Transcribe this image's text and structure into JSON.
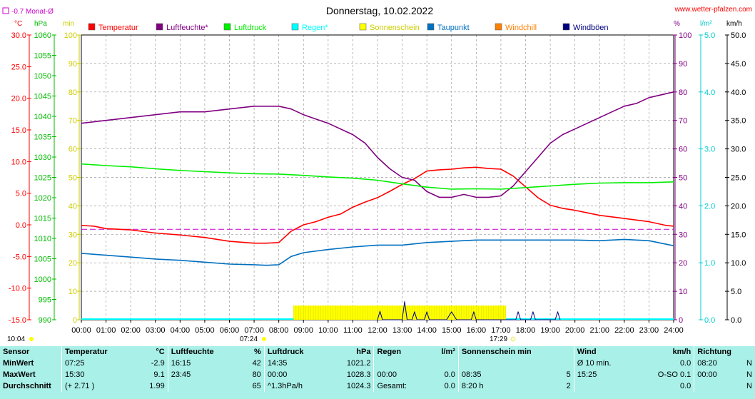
{
  "header": {
    "title": "Donnerstag, 10.02.2022",
    "site": "www.wetter-pfalzen.com",
    "monthly_avg": "-0.7 Monat-Ø",
    "monthly_avg_color": "#cc00cc"
  },
  "axes": {
    "temp_unit": "°C",
    "press_unit": "hPa",
    "min_unit": "min",
    "pct_unit": "%",
    "rain_unit": "l/m²",
    "wind_unit": "km/h",
    "temp_ticks": [
      "30.0",
      "25.0",
      "20.0",
      "15.0",
      "10.0",
      "5.0",
      "0.0",
      "-5.0",
      "-10.0",
      "-15.0"
    ],
    "press_ticks": [
      "1060",
      "1055",
      "1050",
      "1045",
      "1040",
      "1035",
      "1030",
      "1025",
      "1020",
      "1015",
      "1010",
      "1005",
      "1000",
      "995",
      "990"
    ],
    "min_ticks": [
      "100",
      "90",
      "80",
      "70",
      "60",
      "50",
      "40",
      "30",
      "20",
      "10",
      "0"
    ],
    "pct_ticks": [
      "100",
      "90",
      "80",
      "70",
      "60",
      "50",
      "40",
      "30",
      "20",
      "10",
      "0"
    ],
    "rain_ticks": [
      "5.0",
      "4.0",
      "3.0",
      "2.0",
      "1.0",
      "0.0"
    ],
    "wind_ticks": [
      "50.0",
      "45.0",
      "40.0",
      "35.0",
      "30.0",
      "25.0",
      "20.0",
      "15.0",
      "10.0",
      "5.0",
      "0.0"
    ],
    "time_ticks": [
      "00:00",
      "01:00",
      "02:00",
      "03:00",
      "04:00",
      "05:00",
      "06:00",
      "07:00",
      "08:00",
      "09:00",
      "10:00",
      "11:00",
      "12:00",
      "13:00",
      "14:00",
      "15:00",
      "16:00",
      "17:00",
      "18:00",
      "19:00",
      "20:00",
      "21:00",
      "22:00",
      "23:00",
      "24:00"
    ],
    "now_label": "10:04",
    "sunrise": "07:24",
    "sunset": "17:29"
  },
  "legend": [
    {
      "label": "Temperatur",
      "color": "#ff0000"
    },
    {
      "label": "Luftfeuchte*",
      "color": "#800080"
    },
    {
      "label": "Luftdruck",
      "color": "#00ee00"
    },
    {
      "label": "Regen*",
      "color": "#00ffff"
    },
    {
      "label": "Sonnenschein",
      "color": "#ffff00"
    },
    {
      "label": "Taupunkt",
      "color": "#0070c0"
    },
    {
      "label": "Windchill",
      "color": "#ff8000"
    },
    {
      "label": "Windböen",
      "color": "#000080"
    }
  ],
  "chart_data": {
    "type": "line",
    "title": "Donnerstag, 10.02.2022",
    "x_unit": "hour",
    "xlim": [
      0,
      24
    ],
    "grid": true,
    "legend_position": "top",
    "series": [
      {
        "name": "Temperatur",
        "unit": "°C",
        "ylim": [
          -15,
          30
        ],
        "color": "#ff0000",
        "points": [
          [
            0,
            -0.1
          ],
          [
            0.5,
            -0.2
          ],
          [
            1,
            -0.6
          ],
          [
            2,
            -0.8
          ],
          [
            3,
            -1.3
          ],
          [
            4,
            -1.6
          ],
          [
            5,
            -2.0
          ],
          [
            6,
            -2.6
          ],
          [
            7,
            -2.9
          ],
          [
            7.5,
            -2.9
          ],
          [
            8,
            -2.8
          ],
          [
            8.5,
            -1.0
          ],
          [
            9,
            0.0
          ],
          [
            9.5,
            0.5
          ],
          [
            10,
            1.2
          ],
          [
            10.5,
            1.7
          ],
          [
            11,
            2.8
          ],
          [
            11.5,
            3.6
          ],
          [
            12,
            4.3
          ],
          [
            12.5,
            5.3
          ],
          [
            13,
            6.4
          ],
          [
            13.5,
            7.3
          ],
          [
            14,
            8.5
          ],
          [
            14.5,
            8.7
          ],
          [
            15,
            8.8
          ],
          [
            15.5,
            9.0
          ],
          [
            16,
            9.1
          ],
          [
            16.5,
            8.9
          ],
          [
            17,
            8.8
          ],
          [
            17.5,
            7.7
          ],
          [
            18,
            6.0
          ],
          [
            18.5,
            4.3
          ],
          [
            19,
            3.1
          ],
          [
            19.5,
            2.6
          ],
          [
            20,
            2.3
          ],
          [
            20.5,
            1.9
          ],
          [
            21,
            1.5
          ],
          [
            22,
            1.0
          ],
          [
            23,
            0.5
          ],
          [
            23.7,
            -0.1
          ],
          [
            24,
            -0.2
          ]
        ]
      },
      {
        "name": "Luftfeuchte*",
        "unit": "%",
        "ylim": [
          0,
          100
        ],
        "color": "#800080",
        "points": [
          [
            0,
            69
          ],
          [
            1,
            70
          ],
          [
            2,
            71
          ],
          [
            3,
            72
          ],
          [
            4,
            73
          ],
          [
            5,
            73
          ],
          [
            6,
            74
          ],
          [
            7,
            75
          ],
          [
            8,
            75
          ],
          [
            8.5,
            74
          ],
          [
            9,
            72
          ],
          [
            10,
            69
          ],
          [
            11,
            65
          ],
          [
            11.5,
            62
          ],
          [
            12,
            57
          ],
          [
            12.5,
            53
          ],
          [
            13,
            50
          ],
          [
            13.5,
            49
          ],
          [
            14,
            45
          ],
          [
            14.5,
            43
          ],
          [
            15,
            43
          ],
          [
            15.5,
            44
          ],
          [
            16,
            43
          ],
          [
            16.5,
            43
          ],
          [
            17,
            43.5
          ],
          [
            17.5,
            47
          ],
          [
            18,
            52
          ],
          [
            18.5,
            57
          ],
          [
            19,
            62
          ],
          [
            19.5,
            65
          ],
          [
            20,
            67
          ],
          [
            20.5,
            69
          ],
          [
            21,
            71
          ],
          [
            21.5,
            73
          ],
          [
            22,
            75
          ],
          [
            22.5,
            76
          ],
          [
            23,
            78
          ],
          [
            24,
            80
          ]
        ]
      },
      {
        "name": "Luftdruck",
        "unit": "hPa",
        "ylim": [
          990,
          1060
        ],
        "color": "#00ee00",
        "points": [
          [
            0,
            1028.3
          ],
          [
            1,
            1027.9
          ],
          [
            2,
            1027.6
          ],
          [
            3,
            1027.1
          ],
          [
            4,
            1026.7
          ],
          [
            5,
            1026.4
          ],
          [
            6,
            1026.1
          ],
          [
            7,
            1025.9
          ],
          [
            8,
            1025.8
          ],
          [
            9,
            1025.5
          ],
          [
            10,
            1025.1
          ],
          [
            11,
            1024.8
          ],
          [
            12,
            1024.3
          ],
          [
            13,
            1023.4
          ],
          [
            14,
            1022.6
          ],
          [
            15,
            1022.1
          ],
          [
            16,
            1022.2
          ],
          [
            17,
            1022.1
          ],
          [
            18,
            1022.5
          ],
          [
            19,
            1022.9
          ],
          [
            20,
            1023.3
          ],
          [
            21,
            1023.6
          ],
          [
            22,
            1023.7
          ],
          [
            23,
            1023.7
          ],
          [
            24,
            1023.9
          ]
        ]
      },
      {
        "name": "Taupunkt",
        "unit": "°C",
        "ylim": [
          -15,
          30
        ],
        "color": "#0070c0",
        "points": [
          [
            0,
            -4.5
          ],
          [
            1,
            -4.8
          ],
          [
            2,
            -5.1
          ],
          [
            3,
            -5.4
          ],
          [
            4,
            -5.6
          ],
          [
            5,
            -5.9
          ],
          [
            6,
            -6.2
          ],
          [
            7,
            -6.3
          ],
          [
            7.5,
            -6.4
          ],
          [
            8,
            -6.3
          ],
          [
            8.5,
            -5.0
          ],
          [
            9,
            -4.4
          ],
          [
            10,
            -3.9
          ],
          [
            11,
            -3.5
          ],
          [
            12,
            -3.2
          ],
          [
            13,
            -3.2
          ],
          [
            14,
            -2.8
          ],
          [
            15,
            -2.6
          ],
          [
            16,
            -2.4
          ],
          [
            17,
            -2.4
          ],
          [
            18,
            -2.4
          ],
          [
            19,
            -2.4
          ],
          [
            20,
            -2.4
          ],
          [
            21,
            -2.5
          ],
          [
            22,
            -2.3
          ],
          [
            23,
            -2.5
          ],
          [
            24,
            -3.3
          ]
        ]
      },
      {
        "name": "Sonnenschein",
        "unit": "min",
        "ylim": [
          0,
          100
        ],
        "color": "#ffff00",
        "bars": [
          {
            "from": 8.6,
            "to": 17.2,
            "value": 5
          }
        ]
      },
      {
        "name": "Windböen",
        "unit": "km/h",
        "ylim": [
          0,
          50
        ],
        "color": "#000080",
        "points": [
          [
            12,
            0
          ],
          [
            12.1,
            1.5
          ],
          [
            12.2,
            0
          ],
          [
            13,
            0
          ],
          [
            13.1,
            3.2
          ],
          [
            13.2,
            0
          ],
          [
            13.4,
            0
          ],
          [
            13.5,
            1.4
          ],
          [
            13.6,
            0
          ],
          [
            13.9,
            0
          ],
          [
            14,
            1.4
          ],
          [
            14.1,
            0
          ],
          [
            14.8,
            0
          ],
          [
            15,
            1.4
          ],
          [
            15.2,
            0
          ],
          [
            15.8,
            0
          ],
          [
            15.9,
            1.4
          ],
          [
            16,
            0
          ],
          [
            17.6,
            0
          ],
          [
            17.7,
            1.4
          ],
          [
            17.8,
            0
          ],
          [
            18.2,
            0
          ],
          [
            18.3,
            1.4
          ],
          [
            18.4,
            0
          ],
          [
            19.2,
            0
          ],
          [
            19.3,
            1.4
          ],
          [
            19.4,
            0
          ]
        ]
      }
    ],
    "reference_line": {
      "label": "-0.7 Monat-Ø",
      "value": -0.7,
      "unit": "°C"
    }
  },
  "stats": {
    "headers": [
      "Sensor",
      "Temperatur",
      "°C",
      "Luftfeuchte",
      "%",
      "Luftdruck",
      "hPa",
      "Regen",
      "l/m²",
      "Sonnenschein min",
      "Wind",
      "km/h",
      "Richtung"
    ],
    "rows": [
      {
        "label": "MinWert",
        "c": [
          "07:25",
          "-2.9",
          "16:15",
          "42",
          "14:35",
          "1021.2",
          "",
          "",
          "",
          "",
          "Ø 10 min.",
          "0.0",
          "08:20",
          "N"
        ]
      },
      {
        "label": "MaxWert",
        "c": [
          "15:30",
          "9.1",
          "23:45",
          "80",
          "00:00",
          "1028.3",
          "00:00",
          "0.0",
          "08:35",
          "5",
          "15:25",
          "O-SO 0.1",
          "00:00",
          "N"
        ]
      },
      {
        "label": "Durchschnitt",
        "c": [
          "(+ 2.71 )",
          "1.99",
          "",
          "65",
          "^1.3hPa/h",
          "1024.3",
          "Gesamt:",
          "0.0",
          "8:20 h",
          "2",
          "",
          "0.0",
          "",
          "N"
        ]
      }
    ]
  }
}
